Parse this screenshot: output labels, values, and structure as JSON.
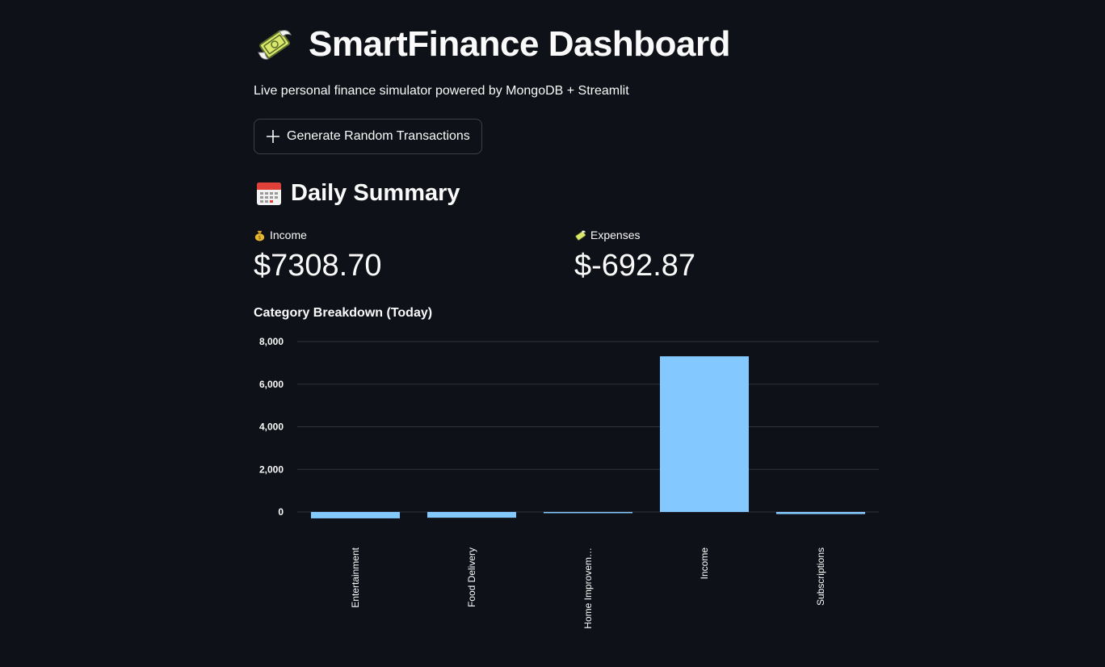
{
  "header": {
    "title": "SmartFinance Dashboard",
    "logo_icon": "money-with-wings-icon",
    "subtitle": "Live personal finance simulator powered by MongoDB + Streamlit"
  },
  "actions": {
    "generate_label": "Generate Random Transactions",
    "generate_icon": "plus-icon"
  },
  "summary": {
    "title": "Daily Summary",
    "icon": "calendar-icon",
    "income": {
      "label": "Income",
      "icon": "money-bag-icon",
      "value": "$7308.70"
    },
    "expenses": {
      "label": "Expenses",
      "icon": "money-with-wings-icon",
      "value": "$-692.87"
    }
  },
  "colors": {
    "background": "#0e1117",
    "bar": "#83c9ff",
    "grid": "#31333f",
    "text": "#fafafa"
  },
  "chart_data": {
    "type": "bar",
    "title": "Category Breakdown (Today)",
    "categories": [
      "Entertainment",
      "Food Delivery",
      "Home Improvem…",
      "Income",
      "Subscriptions"
    ],
    "values": [
      -300,
      -270,
      -20,
      7308.7,
      -100
    ],
    "xlabel": "",
    "ylabel": "",
    "ylim": [
      -400,
      8000
    ],
    "yticks": [
      0,
      2000,
      4000,
      6000,
      8000
    ],
    "ytick_labels": [
      "0",
      "2,000",
      "4,000",
      "6,000",
      "8,000"
    ],
    "grid": true,
    "legend": "none"
  }
}
